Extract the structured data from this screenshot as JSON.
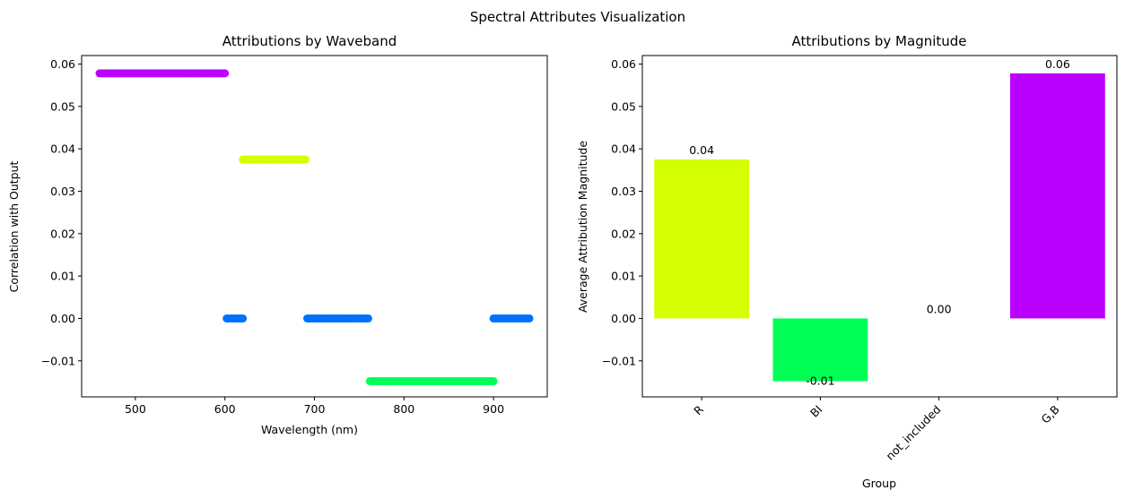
{
  "figure": {
    "suptitle": "Spectral Attributes Visualization"
  },
  "chart_data": [
    {
      "type": "scatter",
      "title": "Attributions by Waveband",
      "xlabel": "Wavelength (nm)",
      "ylabel": "Correlation with Output",
      "xlim": [
        440,
        960
      ],
      "ylim": [
        -0.0185,
        0.062
      ],
      "xticks": [
        500,
        600,
        700,
        800,
        900
      ],
      "xtick_labels": [
        "500",
        "600",
        "700",
        "800",
        "900"
      ],
      "yticks": [
        -0.01,
        0,
        0.01,
        0.02,
        0.03,
        0.04,
        0.05,
        0.06
      ],
      "ytick_labels": [
        "−0.01",
        "0.00",
        "0.01",
        "0.02",
        "0.03",
        "0.04",
        "0.05",
        "0.06"
      ],
      "grid": false,
      "series": [
        {
          "group": "G,B",
          "color": "#bb00ff",
          "x_start": 460,
          "x_end": 600,
          "step": 2,
          "y": 0.0578
        },
        {
          "group": "R",
          "color": "#d4ff00",
          "x_start": 620,
          "x_end": 690,
          "step": 2,
          "y": 0.0375
        },
        {
          "group": "not_included",
          "color": "#0070ff",
          "x_start": 602,
          "x_end": 620,
          "step": 2,
          "y": 0.0
        },
        {
          "group": "not_included",
          "color": "#0070ff",
          "x_start": 692,
          "x_end": 760,
          "step": 2,
          "y": 0.0
        },
        {
          "group": "not_included",
          "color": "#0070ff",
          "x_start": 900,
          "x_end": 940,
          "step": 2,
          "y": 0.0
        },
        {
          "group": "BI",
          "color": "#00ff55",
          "x_start": 762,
          "x_end": 900,
          "step": 2,
          "y": -0.0148
        }
      ]
    },
    {
      "type": "bar",
      "title": "Attributions by Magnitude",
      "xlabel": "Group",
      "ylabel": "Average Attribution Magnitude",
      "categories": [
        "R",
        "BI",
        "not_included",
        "G,B"
      ],
      "values": [
        0.0375,
        -0.0148,
        0.0,
        0.0578
      ],
      "value_labels": [
        "0.04",
        "-0.01",
        "0.00",
        "0.06"
      ],
      "colors": [
        "#d4ff00",
        "#00ff55",
        "#0070ff",
        "#bb00ff"
      ],
      "ylim": [
        -0.0185,
        0.062
      ],
      "yticks": [
        -0.01,
        0,
        0.01,
        0.02,
        0.03,
        0.04,
        0.05,
        0.06
      ],
      "ytick_labels": [
        "−0.01",
        "0.00",
        "0.01",
        "0.02",
        "0.03",
        "0.04",
        "0.05",
        "0.06"
      ],
      "xtick_rotation_deg": 45,
      "grid": false
    }
  ]
}
